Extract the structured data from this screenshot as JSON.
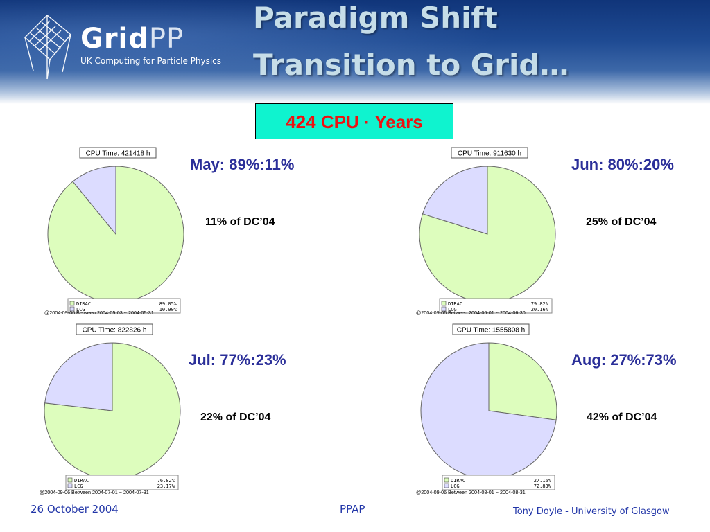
{
  "slide": {
    "title_line1": "Paradigm Shift",
    "title_line2": "Transition to Grid…",
    "headline": "424 CPU · Years"
  },
  "logo": {
    "word_grid": "Grid",
    "word_pp": "PP",
    "tagline": "UK Computing for Particle Physics"
  },
  "colors": {
    "dirac": "#ddfdbd",
    "lcg": "#dcdcff",
    "headline_bg": "#0ff3cf",
    "headline_text": "#ee1111",
    "month_text": "#2b2f99",
    "footer_text": "#2236a8"
  },
  "chart_data": [
    {
      "type": "pie",
      "title": "CPU Time: 421418 h",
      "categories": [
        "DIRAC",
        "LCG"
      ],
      "values": [
        89.05,
        10.9
      ],
      "value_labels": [
        "89.05%",
        "10.90%"
      ],
      "caption": "@2004-09-06  Between  2004-05-03 ~ 2004-05-31",
      "month_label": "May: 89%:11%",
      "share_label": "11% of DC’04"
    },
    {
      "type": "pie",
      "title": "CPU Time: 911630 h",
      "categories": [
        "DIRAC",
        "LCG"
      ],
      "values": [
        79.82,
        20.16
      ],
      "value_labels": [
        "79.82%",
        "20.16%"
      ],
      "caption": "@2004-09-06  Between  2004-06-01 ~ 2004-06-30",
      "month_label": "Jun: 80%:20%",
      "share_label": "25% of DC’04"
    },
    {
      "type": "pie",
      "title": "CPU Time: 822826 h",
      "categories": [
        "DIRAC",
        "LCG"
      ],
      "values": [
        76.82,
        23.17
      ],
      "value_labels": [
        "76.82%",
        "23.17%"
      ],
      "caption": "@2004-09-06  Between  2004-07-01 ~ 2004-07-31",
      "month_label": "Jul: 77%:23%",
      "share_label": "22% of DC’04"
    },
    {
      "type": "pie",
      "title": "CPU Time: 1555808 h",
      "categories": [
        "DIRAC",
        "LCG"
      ],
      "values": [
        27.16,
        72.83
      ],
      "value_labels": [
        "27.16%",
        "72.83%"
      ],
      "caption": "@2004-09-06  Between  2004-08-01 ~ 2004-08-31",
      "month_label": "Aug: 27%:73%",
      "share_label": "42% of DC’04"
    }
  ],
  "footer": {
    "date": "26 October 2004",
    "event": "PPAP",
    "author": "Tony Doyle - University of Glasgow"
  }
}
